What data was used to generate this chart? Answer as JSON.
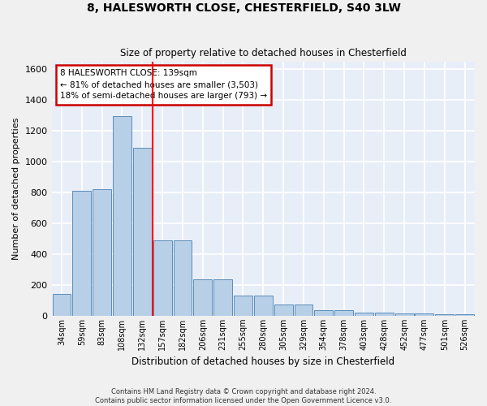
{
  "title1": "8, HALESWORTH CLOSE, CHESTERFIELD, S40 3LW",
  "title2": "Size of property relative to detached houses in Chesterfield",
  "xlabel": "Distribution of detached houses by size in Chesterfield",
  "ylabel": "Number of detached properties",
  "bar_color": "#b8cfe8",
  "bar_edge_color": "#5b8db8",
  "background_color": "#e8eef8",
  "grid_color": "#ffffff",
  "categories": [
    "34sqm",
    "59sqm",
    "83sqm",
    "108sqm",
    "132sqm",
    "157sqm",
    "182sqm",
    "206sqm",
    "231sqm",
    "255sqm",
    "280sqm",
    "305sqm",
    "329sqm",
    "354sqm",
    "378sqm",
    "403sqm",
    "428sqm",
    "452sqm",
    "477sqm",
    "501sqm",
    "526sqm"
  ],
  "values": [
    140,
    810,
    820,
    1295,
    1090,
    490,
    490,
    235,
    235,
    130,
    130,
    72,
    72,
    38,
    38,
    22,
    22,
    13,
    13,
    8,
    8
  ],
  "ylim": [
    0,
    1650
  ],
  "yticks": [
    0,
    200,
    400,
    600,
    800,
    1000,
    1200,
    1400,
    1600
  ],
  "property_line_x": 4.5,
  "annotation_text": "8 HALESWORTH CLOSE: 139sqm\n← 81% of detached houses are smaller (3,503)\n18% of semi-detached houses are larger (793) →",
  "annotation_box_color": "#ffffff",
  "annotation_box_edge": "#cc0000",
  "footer": "Contains HM Land Registry data © Crown copyright and database right 2024.\nContains public sector information licensed under the Open Government Licence v3.0.",
  "fig_width": 6.0,
  "fig_height": 5.0,
  "dpi": 100
}
